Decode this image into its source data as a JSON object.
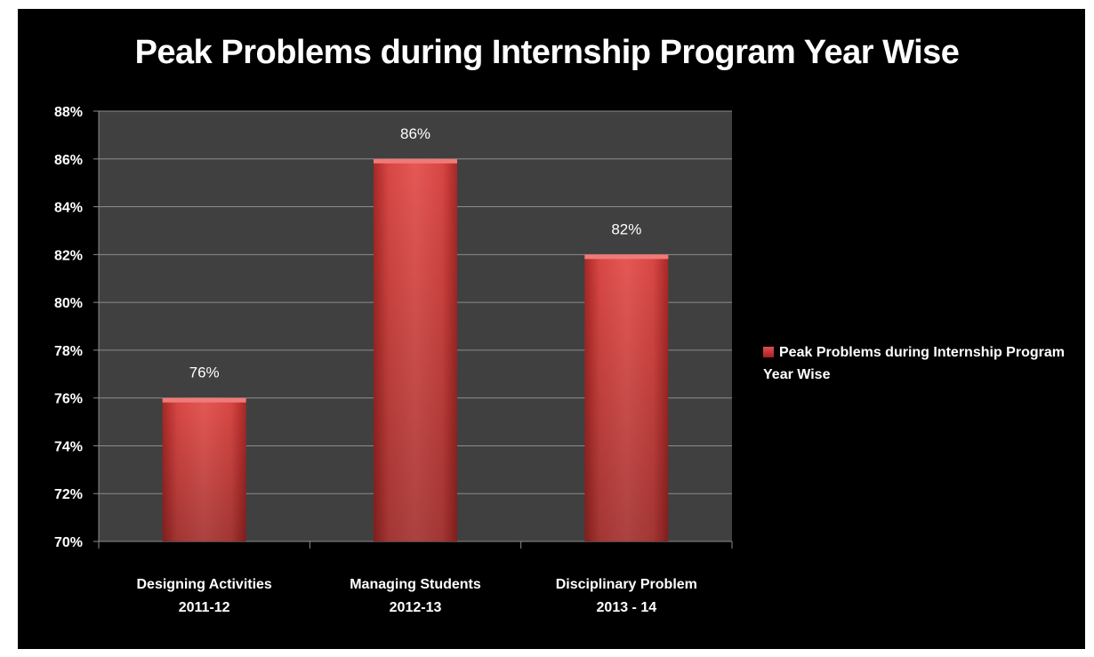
{
  "chart_data": {
    "type": "bar",
    "title": "Peak Problems during Internship Program Year Wise",
    "categories": [
      [
        "Designing Activities",
        "2011-12"
      ],
      [
        "Managing Students",
        "2012-13"
      ],
      [
        "Disciplinary Problem",
        "2013 - 14"
      ]
    ],
    "series": [
      {
        "name": "Peak Problems during Internship Program Year Wise",
        "values": [
          76,
          86,
          82
        ],
        "value_labels": [
          "76%",
          "86%",
          "82%"
        ]
      }
    ],
    "ylim": [
      70,
      88
    ],
    "yticks": [
      "70%",
      "72%",
      "74%",
      "76%",
      "78%",
      "80%",
      "82%",
      "84%",
      "86%",
      "88%"
    ],
    "grid": true,
    "legend_position": "right",
    "colors": {
      "bar": "#c0302e",
      "bar_light": "#e35350",
      "plot_background": "#404040",
      "page_background": "#000000",
      "gridline": "#8c8c8c",
      "text": "#ffffff"
    }
  },
  "legend": {
    "label": "Peak Problems during Internship Program Year Wise"
  }
}
